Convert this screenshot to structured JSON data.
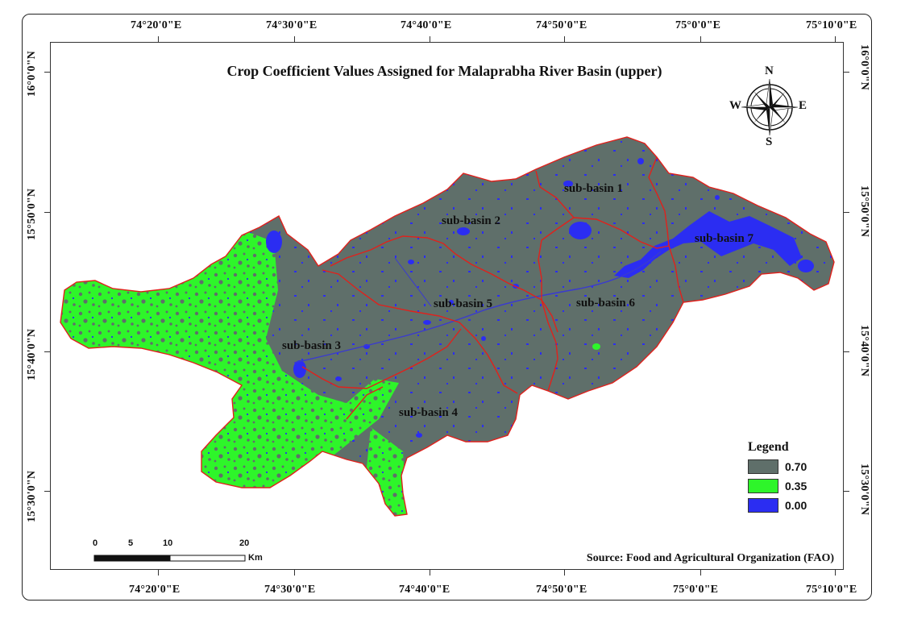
{
  "title": "Crop Coefficient Values Assigned for Malaprabha River Basin (upper)",
  "longitude_labels": [
    "74°20'0\"E",
    "74°30'0\"E",
    "74°40'0\"E",
    "74°50'0\"E",
    "75°0'0\"E",
    "75°10'0\"E"
  ],
  "latitude_labels": [
    "16°0'0\"N",
    "15°50'0\"N",
    "15°40'0\"N",
    "15°30'0\"N"
  ],
  "legend": {
    "title": "Legend",
    "items": [
      {
        "label": "0.70",
        "color": "#5f6f6a"
      },
      {
        "label": "0.35",
        "color": "#2ef52a"
      },
      {
        "label": "0.00",
        "color": "#2b2df2"
      }
    ]
  },
  "subbasins": [
    "sub-basin 1",
    "sub-basin 2",
    "sub-basin 3",
    "sub-basin 4",
    "sub-basin 5",
    "sub-basin 6",
    "sub-basin 7"
  ],
  "scale": {
    "ticks": [
      "0",
      "5",
      "10",
      "20"
    ],
    "unit": "Km"
  },
  "north_arrow": {
    "n": "N",
    "s": "S",
    "e": "E",
    "w": "W"
  },
  "source": "Source: Food and Agricultural Organization (FAO)",
  "colors": {
    "boundary": "#e0211c",
    "river": "#3a3ad0"
  }
}
